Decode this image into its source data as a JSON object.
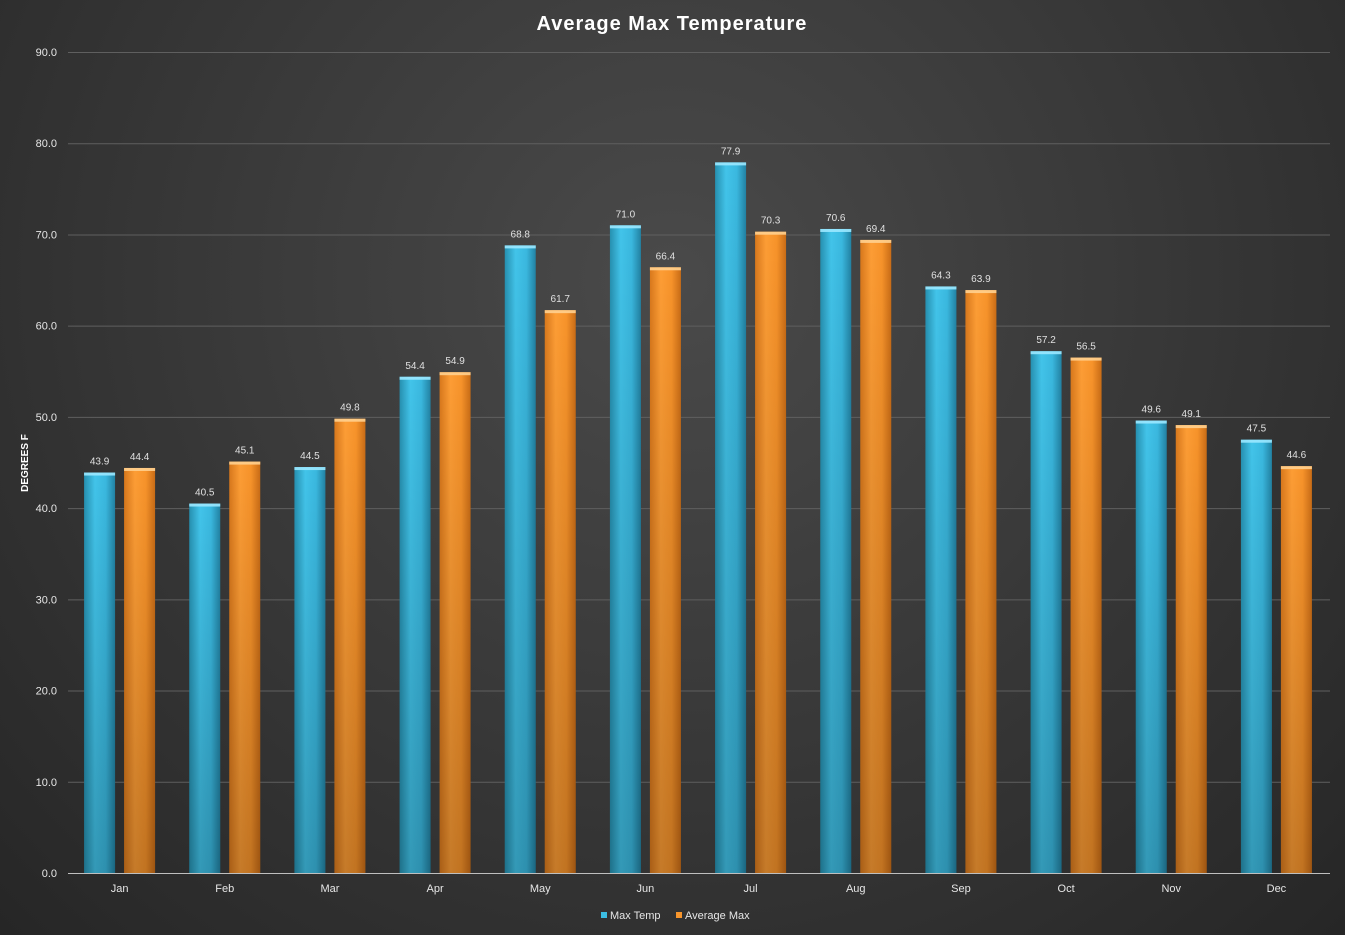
{
  "chart_data": {
    "type": "bar",
    "title": "Average Max Temperature",
    "xlabel": "",
    "ylabel": "DEGREES F",
    "ylim": [
      0,
      90
    ],
    "yticks": [
      "0.0",
      "10.0",
      "20.0",
      "30.0",
      "40.0",
      "50.0",
      "60.0",
      "70.0",
      "80.0",
      "90.0"
    ],
    "categories": [
      "Jan",
      "Feb",
      "Mar",
      "Apr",
      "May",
      "Jun",
      "Jul",
      "Aug",
      "Sep",
      "Oct",
      "Nov",
      "Dec"
    ],
    "series": [
      {
        "name": "Max Temp",
        "color": "#3bbde2",
        "values": [
          43.9,
          40.5,
          44.5,
          54.4,
          68.8,
          71.0,
          77.9,
          70.6,
          64.3,
          57.2,
          49.6,
          47.5
        ]
      },
      {
        "name": "Average Max",
        "color": "#f7952c",
        "values": [
          44.4,
          45.1,
          49.8,
          54.9,
          61.7,
          66.4,
          70.3,
          69.4,
          63.9,
          56.5,
          49.1,
          44.6
        ]
      }
    ],
    "data_labels": true,
    "grid": true,
    "legend": "bottom"
  }
}
